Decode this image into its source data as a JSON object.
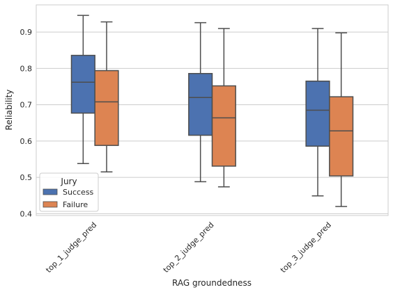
{
  "chart_data": {
    "type": "box",
    "xlabel": "RAG groundedness",
    "ylabel": "Reliability",
    "ylim": [
      0.395,
      0.975
    ],
    "yticks": [
      0.4,
      0.5,
      0.6,
      0.7,
      0.8,
      0.9
    ],
    "grid": "horizontal",
    "categories": [
      "top_1_judge_pred",
      "top_2_judge_pred",
      "top_3_judge_pred"
    ],
    "legend": {
      "title": "Jury",
      "placement": "lower-left"
    },
    "series": [
      {
        "name": "Success",
        "color": "#4c72b0",
        "boxes": [
          {
            "whisker_low": 0.538,
            "q1": 0.677,
            "median": 0.762,
            "q3": 0.836,
            "whisker_high": 0.946
          },
          {
            "whisker_low": 0.488,
            "q1": 0.616,
            "median": 0.72,
            "q3": 0.786,
            "whisker_high": 0.926
          },
          {
            "whisker_low": 0.449,
            "q1": 0.586,
            "median": 0.685,
            "q3": 0.765,
            "whisker_high": 0.91
          }
        ]
      },
      {
        "name": "Failure",
        "color": "#dd8452",
        "boxes": [
          {
            "whisker_low": 0.515,
            "q1": 0.588,
            "median": 0.708,
            "q3": 0.794,
            "whisker_high": 0.928
          },
          {
            "whisker_low": 0.474,
            "q1": 0.531,
            "median": 0.664,
            "q3": 0.752,
            "whisker_high": 0.91
          },
          {
            "whisker_low": 0.42,
            "q1": 0.504,
            "median": 0.628,
            "q3": 0.722,
            "whisker_high": 0.898
          }
        ]
      }
    ]
  }
}
